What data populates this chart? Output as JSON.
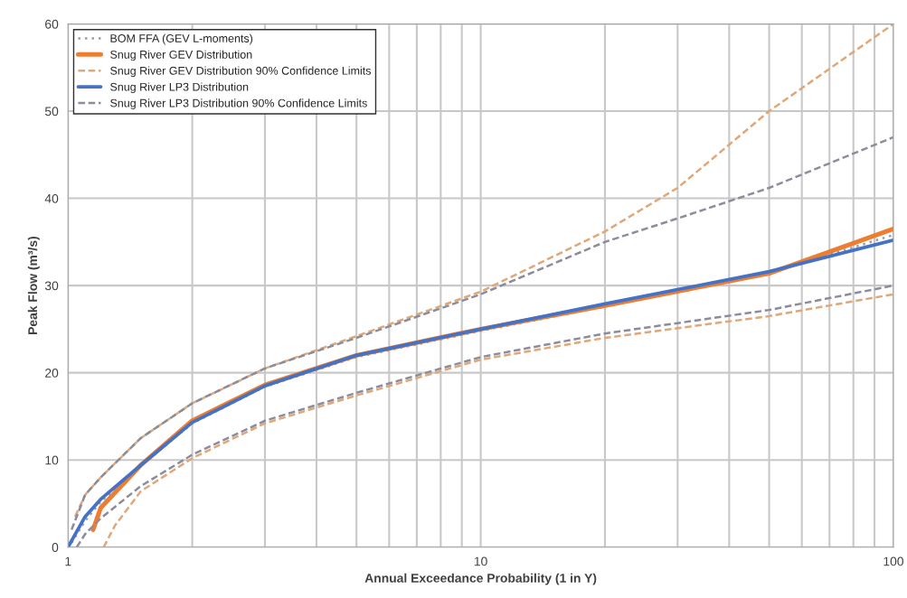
{
  "chart_data": {
    "type": "line",
    "xlabel": "Annual Exceedance Probability (1 in Y)",
    "ylabel": "Peak Flow (m³/s)",
    "log": "x",
    "xlim": [
      1,
      100
    ],
    "ylim": [
      0,
      60
    ],
    "xticks": [
      1,
      {
        "value": 2,
        "label": null
      },
      {
        "value": 3,
        "label": null
      },
      {
        "value": 4,
        "label": null
      },
      {
        "value": 5,
        "label": null
      },
      {
        "value": 6,
        "label": null
      },
      {
        "value": 7,
        "label": null
      },
      {
        "value": 8,
        "label": null
      },
      {
        "value": 9,
        "label": null
      },
      10,
      {
        "value": 20,
        "label": null
      },
      {
        "value": 30,
        "label": null
      },
      {
        "value": 40,
        "label": null
      },
      {
        "value": 50,
        "label": null
      },
      {
        "value": 60,
        "label": null
      },
      {
        "value": 70,
        "label": null
      },
      {
        "value": 80,
        "label": null
      },
      {
        "value": 90,
        "label": null
      },
      100
    ],
    "yticks": [
      0,
      10,
      20,
      30,
      40,
      50,
      60
    ],
    "grid": true,
    "legend": "top left",
    "marker": "none",
    "series": [
      {
        "name": "BOM FFA (GEV L-moments)",
        "color": "#9a9aaa",
        "line_style": "dotted",
        "x": [
          1.02,
          1.1,
          1.2,
          1.5,
          2,
          3,
          5,
          10,
          20,
          50,
          100
        ],
        "values": [
          0.5,
          3,
          5.2,
          9.3,
          14.2,
          18.4,
          21.8,
          24.8,
          27.6,
          31.4,
          35.8
        ]
      },
      {
        "name": "Snug River GEV Distribution",
        "color": "#ed7d31",
        "line_style": "solid",
        "x": [
          1.15,
          1.2,
          1.5,
          2,
          3,
          5,
          10,
          20,
          50,
          100
        ],
        "values": [
          2,
          4.5,
          9.4,
          14.5,
          18.6,
          22,
          25,
          27.7,
          31.4,
          36.5
        ]
      },
      {
        "name": "Snug River GEV Distribution 90% Confidence Limits",
        "color": "#e0a878",
        "line_style": "dashed",
        "x": [
          1.04,
          1.1,
          1.2,
          1.5,
          2,
          3,
          5,
          10,
          20,
          30,
          50,
          100
        ],
        "values": [
          3.5,
          6,
          8,
          12.5,
          16.5,
          20.5,
          24.2,
          29.3,
          36.2,
          41.2,
          50,
          60
        ]
      },
      {
        "color": "#e0a878",
        "line_style": "dashed",
        "x": [
          1.22,
          1.3,
          1.5,
          2,
          3,
          5,
          10,
          20,
          50,
          100
        ],
        "values": [
          0,
          2.5,
          6.4,
          10.2,
          14.2,
          17.4,
          21.5,
          24,
          26.5,
          29
        ]
      },
      {
        "name": "Snug River LP3 Distribution",
        "color": "#4472c4",
        "line_style": "solid",
        "x": [
          1,
          1.1,
          1.2,
          1.5,
          2,
          3,
          5,
          10,
          20,
          50,
          100
        ],
        "values": [
          0,
          3.5,
          5.5,
          9.4,
          14.3,
          18.5,
          22,
          25,
          27.9,
          31.6,
          35.2
        ]
      },
      {
        "name": "Snug River LP3 Distribution 90% Confidence Limits",
        "color": "#8c8c9c",
        "line_style": "dashed",
        "x": [
          1.02,
          1.1,
          1.2,
          1.5,
          2,
          3,
          5,
          10,
          20,
          30,
          50,
          100
        ],
        "values": [
          2,
          6,
          8,
          12.5,
          16.5,
          20.5,
          24,
          29,
          35,
          37.7,
          41.2,
          47
        ]
      },
      {
        "color": "#8c8c9c",
        "line_style": "dashed",
        "x": [
          1.05,
          1.1,
          1.2,
          1.5,
          2,
          3,
          5,
          10,
          20,
          50,
          100
        ],
        "values": [
          0,
          1.5,
          3.3,
          7,
          10.6,
          14.5,
          17.7,
          21.8,
          24.5,
          27.2,
          30
        ]
      }
    ]
  }
}
